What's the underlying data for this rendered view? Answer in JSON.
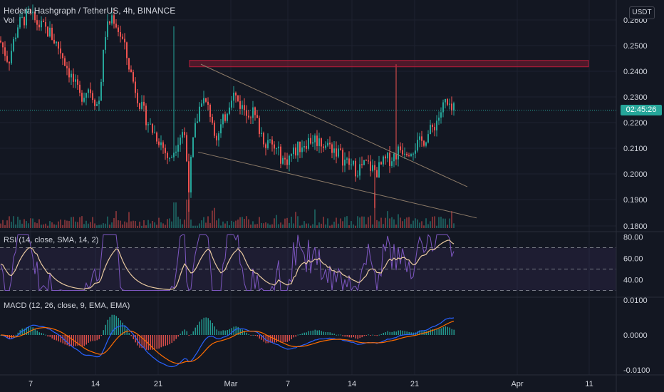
{
  "header": {
    "symbol_line": "Hedera Hashgraph / TetherUS, 4h, BINANCE",
    "volume_label": "Vol",
    "currency_button": "USDT"
  },
  "price_axis": {
    "ticks": [
      "0.2600",
      "0.2500",
      "0.2400",
      "0.2300",
      "0.2200",
      "0.2100",
      "0.2000",
      "0.1900",
      "0.1800"
    ],
    "countdown": "02:45:26",
    "last_price": 0.2248
  },
  "rsi": {
    "label": "RSI (14, close, SMA, 14, 2)",
    "ticks": [
      "80.00",
      "60.00",
      "40.00"
    ],
    "upper_band": 70,
    "middle_band": 50,
    "lower_band": 30
  },
  "macd": {
    "label": "MACD (12, 26, close, 9, EMA, EMA)",
    "ticks": [
      "0.0100",
      "0.0000",
      "-0.0100"
    ]
  },
  "time_axis": {
    "ticks": [
      "7",
      "14",
      "21",
      "Mar",
      "7",
      "14",
      "21",
      "Apr",
      "11"
    ]
  },
  "drawings": {
    "resistance_zone": {
      "from_price": 0.2443,
      "to_price": 0.2428
    },
    "wedge_upper": {
      "from": [
        0.2428
      ],
      "to": [
        0.1952
      ]
    },
    "wedge_lower": {
      "from": [
        0.2087
      ],
      "to": [
        0.1831
      ]
    }
  },
  "colors": {
    "background": "#131722",
    "up": "#26a69a",
    "down": "#ef5350",
    "rsi_line": "#7e57c2",
    "rsi_ma": "#e8c9a0",
    "macd_line": "#2962ff",
    "signal_line": "#ff6d00",
    "zone": "#b71c3a",
    "trend": "#8d7b68"
  }
}
